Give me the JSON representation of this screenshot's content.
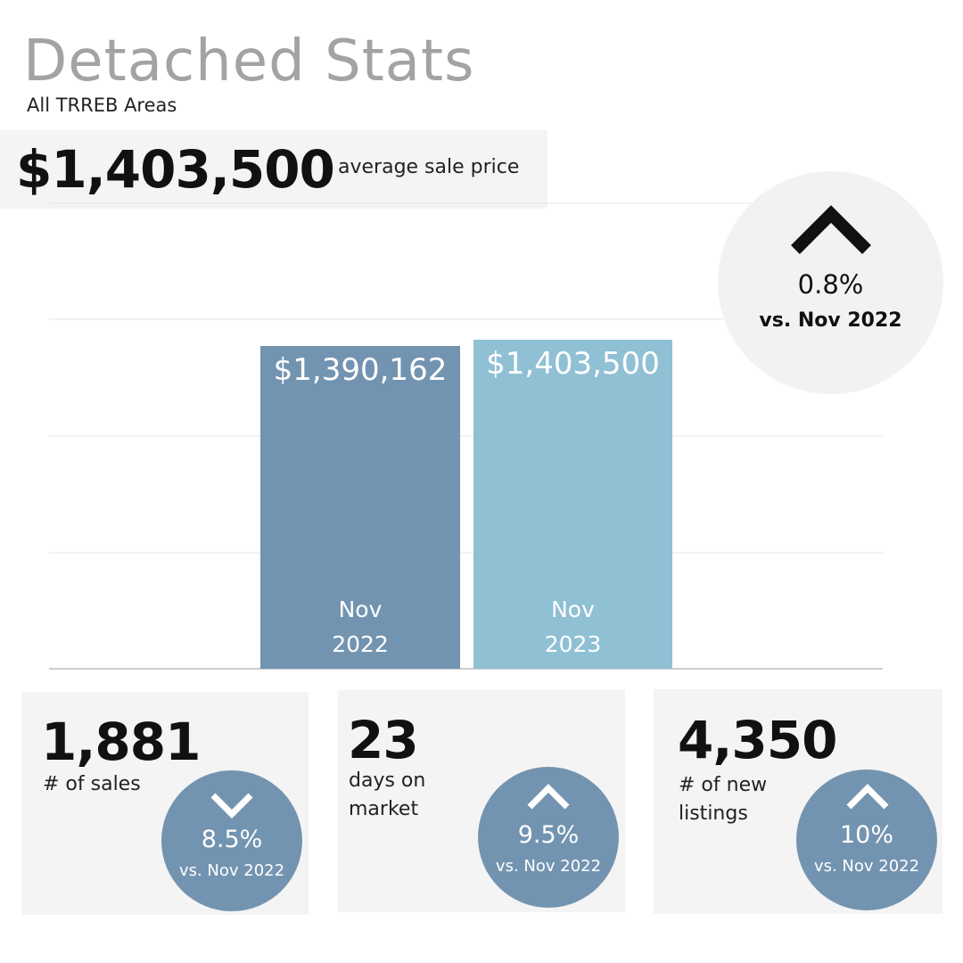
{
  "header": {
    "title": "Detached Stats",
    "subtitle": "All TRREB Areas",
    "price": "$1,403,500",
    "price_label": "average sale price"
  },
  "change": {
    "direction": "up",
    "percent": "0.8%",
    "comparison": "vs. Nov 2022"
  },
  "chart_data": {
    "type": "bar",
    "categories": [
      "Nov 2022",
      "Nov 2023"
    ],
    "category_lines": [
      [
        "Nov",
        "2022"
      ],
      [
        "Nov",
        "2023"
      ]
    ],
    "values": [
      1390162,
      1403500
    ],
    "value_labels": [
      "$1,390,162",
      "$1,403,500"
    ],
    "colors": [
      "#7394b0",
      "#90c0d4"
    ],
    "grid": true
  },
  "stats": [
    {
      "value": "1,881",
      "label": "# of sales",
      "direction": "down",
      "percent": "8.5%",
      "comparison": "vs. Nov 2022"
    },
    {
      "value": "23",
      "label": "days on market",
      "direction": "up",
      "percent": "9.5%",
      "comparison": "vs. Nov 2022"
    },
    {
      "value": "4,350",
      "label": "# of new listings",
      "direction": "up",
      "percent": "10%",
      "comparison": "vs. Nov 2022"
    }
  ],
  "colors": {
    "circle_blue": "#7394b0",
    "title_gray": "#a3a3a3",
    "panel_gray": "#f4f4f4"
  }
}
